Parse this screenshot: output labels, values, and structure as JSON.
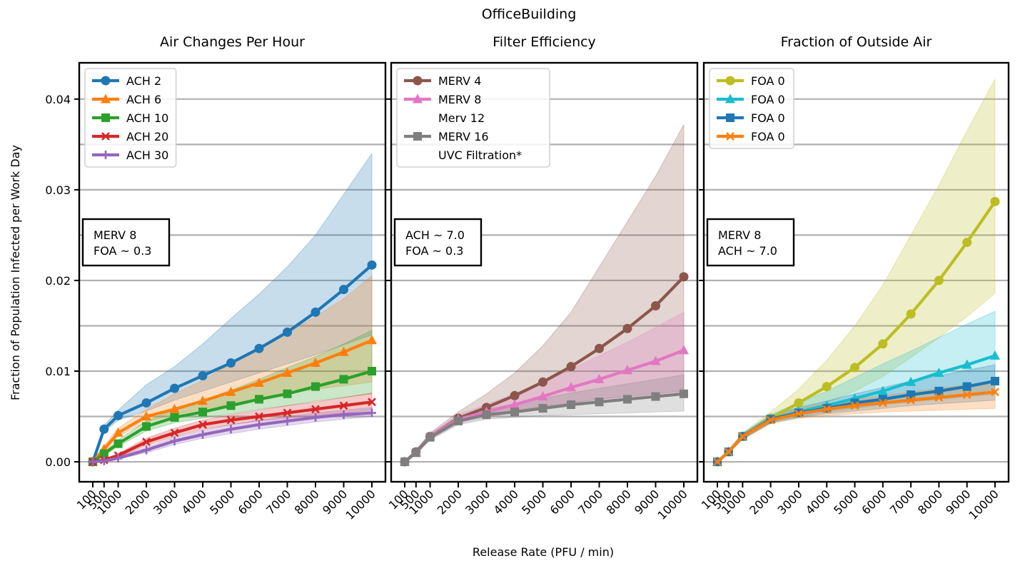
{
  "figure": {
    "title": "OfficeBuilding",
    "xlabel": "Release Rate (PFU / min)",
    "ylabel": "Fraction of Population Infected per Work Day"
  },
  "chart_data": [
    {
      "type": "line",
      "title": "Air Changes Per Hour",
      "xlabel": "Release Rate (PFU / min)",
      "ylabel": "Fraction of Population Infected per Work Day",
      "x": [
        100,
        500,
        1000,
        2000,
        3000,
        4000,
        5000,
        6000,
        7000,
        8000,
        9000,
        10000
      ],
      "xticks": [
        "100",
        "500",
        "1000",
        "2000",
        "3000",
        "4000",
        "5000",
        "6000",
        "7000",
        "8000",
        "9000",
        "10000"
      ],
      "yticks": [
        "0.00",
        "0.01",
        "0.02",
        "0.03",
        "0.04"
      ],
      "ylim": [
        -0.0022,
        0.044
      ],
      "grid": "horizontal",
      "legend": "top-left",
      "annotation": [
        "MERV 8",
        "FOA ~ 0.3"
      ],
      "series": [
        {
          "name": "ACH 2",
          "color": "#1f77b4",
          "marker": "circle",
          "values": [
            0.0,
            0.0036,
            0.0051,
            0.0065,
            0.0081,
            0.0095,
            0.0109,
            0.0125,
            0.0143,
            0.0165,
            0.019,
            0.0217
          ],
          "upper": [
            0.0003,
            0.004,
            0.0057,
            0.0085,
            0.0105,
            0.013,
            0.0158,
            0.0185,
            0.0215,
            0.025,
            0.0295,
            0.034
          ],
          "lower": [
            0.0,
            0.0033,
            0.0046,
            0.0056,
            0.0068,
            0.0078,
            0.0088,
            0.0098,
            0.0108,
            0.0118,
            0.0129,
            0.014
          ]
        },
        {
          "name": "ACH 6",
          "color": "#ff7f0e",
          "marker": "triangle",
          "values": [
            0.0,
            0.0014,
            0.0032,
            0.005,
            0.0058,
            0.0067,
            0.0077,
            0.0087,
            0.0098,
            0.0109,
            0.0121,
            0.0134
          ],
          "upper": [
            0.0002,
            0.0018,
            0.0037,
            0.0058,
            0.0075,
            0.009,
            0.0108,
            0.0125,
            0.0142,
            0.016,
            0.018,
            0.0205
          ],
          "lower": [
            0.0,
            0.0011,
            0.0028,
            0.0044,
            0.0052,
            0.0058,
            0.0064,
            0.007,
            0.0075,
            0.008,
            0.0084,
            0.0088
          ]
        },
        {
          "name": "ACH 10",
          "color": "#2ca02c",
          "marker": "square",
          "values": [
            0.0,
            0.0009,
            0.002,
            0.0039,
            0.0049,
            0.0055,
            0.0062,
            0.0069,
            0.0075,
            0.0083,
            0.0091,
            0.01
          ],
          "upper": [
            0.0001,
            0.0011,
            0.0024,
            0.0045,
            0.0058,
            0.0068,
            0.0079,
            0.0091,
            0.0104,
            0.0116,
            0.013,
            0.0145
          ],
          "lower": [
            0.0,
            0.0007,
            0.0017,
            0.0034,
            0.0043,
            0.0048,
            0.0053,
            0.0058,
            0.0062,
            0.0067,
            0.0071,
            0.0075
          ]
        },
        {
          "name": "ACH 20",
          "color": "#d62728",
          "marker": "x",
          "values": [
            0.0,
            0.0002,
            0.0007,
            0.0022,
            0.0032,
            0.0041,
            0.0046,
            0.005,
            0.0054,
            0.0058,
            0.0062,
            0.0066
          ],
          "upper": [
            0.0,
            0.0003,
            0.0009,
            0.0026,
            0.0037,
            0.0046,
            0.0052,
            0.0057,
            0.0062,
            0.0066,
            0.0071,
            0.0076
          ],
          "lower": [
            0.0,
            0.0001,
            0.0005,
            0.0018,
            0.0028,
            0.0036,
            0.0041,
            0.0045,
            0.0048,
            0.0051,
            0.0054,
            0.0057
          ]
        },
        {
          "name": "ACH 30",
          "color": "#9467bd",
          "marker": "plus",
          "values": [
            0.0,
            0.0001,
            0.0004,
            0.0013,
            0.0023,
            0.003,
            0.0036,
            0.0041,
            0.0045,
            0.0049,
            0.0052,
            0.0054
          ],
          "upper": [
            0.0,
            0.0002,
            0.0006,
            0.0016,
            0.0027,
            0.0035,
            0.0041,
            0.0046,
            0.005,
            0.0054,
            0.0057,
            0.006
          ],
          "lower": [
            0.0,
            0.0,
            0.0003,
            0.001,
            0.0019,
            0.0026,
            0.0031,
            0.0036,
            0.004,
            0.0044,
            0.0047,
            0.005
          ]
        }
      ]
    },
    {
      "type": "line",
      "title": "Filter Efficiency",
      "xlabel": "Release Rate (PFU / min)",
      "x": [
        100,
        500,
        1000,
        2000,
        3000,
        4000,
        5000,
        6000,
        7000,
        8000,
        9000,
        10000
      ],
      "xticks": [
        "100",
        "500",
        "1000",
        "2000",
        "3000",
        "4000",
        "5000",
        "6000",
        "7000",
        "8000",
        "9000",
        "10000"
      ],
      "ylim": [
        -0.0022,
        0.044
      ],
      "grid": "horizontal",
      "legend": "top-left",
      "annotation": [
        "ACH ~ 7.0",
        "FOA ~ 0.3"
      ],
      "series": [
        {
          "name": "MERV 4",
          "color": "#8c564b",
          "marker": "circle",
          "values": [
            0.0,
            0.0011,
            0.0028,
            0.0048,
            0.006,
            0.0073,
            0.0088,
            0.0105,
            0.0125,
            0.0147,
            0.0172,
            0.0204
          ],
          "upper": [
            0.0001,
            0.0013,
            0.0032,
            0.0055,
            0.0075,
            0.0098,
            0.0128,
            0.0165,
            0.0215,
            0.0265,
            0.0315,
            0.0372
          ],
          "lower": [
            0.0,
            0.001,
            0.0025,
            0.0043,
            0.0052,
            0.0057,
            0.0061,
            0.0065,
            0.0069,
            0.0072,
            0.0075,
            0.0078
          ]
        },
        {
          "name": "MERV 8",
          "color": "#e377c2",
          "marker": "triangle",
          "values": [
            0.0,
            0.001,
            0.0028,
            0.0047,
            0.0055,
            0.0063,
            0.0072,
            0.0082,
            0.0091,
            0.0101,
            0.0111,
            0.0123
          ],
          "upper": [
            0.0001,
            0.0012,
            0.0031,
            0.0052,
            0.0063,
            0.0075,
            0.0088,
            0.0102,
            0.0117,
            0.0132,
            0.0148,
            0.0165
          ],
          "lower": [
            0.0,
            0.0009,
            0.0025,
            0.0043,
            0.0049,
            0.0054,
            0.0059,
            0.0063,
            0.0067,
            0.007,
            0.0073,
            0.0076
          ]
        },
        {
          "name": "Merv 12\nMERV 16\nUVC Filtration*",
          "color": "#7f7f7f",
          "marker": "square",
          "values": [
            0.0,
            0.001,
            0.0027,
            0.0045,
            0.0052,
            0.0055,
            0.0059,
            0.0063,
            0.0066,
            0.0069,
            0.0072,
            0.0075
          ],
          "upper": [
            0.0001,
            0.0012,
            0.003,
            0.005,
            0.0058,
            0.0064,
            0.007,
            0.0076,
            0.0081,
            0.0086,
            0.0091,
            0.0096
          ],
          "lower": [
            0.0,
            0.0009,
            0.0024,
            0.0041,
            0.0047,
            0.0049,
            0.0051,
            0.0052,
            0.0053,
            0.0054,
            0.0055,
            0.0056
          ]
        }
      ]
    },
    {
      "type": "line",
      "title": "Fraction of Outside Air",
      "xlabel": "Release Rate (PFU / min)",
      "x": [
        100,
        500,
        1000,
        2000,
        3000,
        4000,
        5000,
        6000,
        7000,
        8000,
        9000,
        10000
      ],
      "xticks": [
        "100",
        "500",
        "1000",
        "2000",
        "3000",
        "4000",
        "5000",
        "6000",
        "7000",
        "8000",
        "9000",
        "10000"
      ],
      "ylim": [
        -0.0022,
        0.044
      ],
      "grid": "horizontal",
      "legend": "top-left",
      "annotation": [
        "MERV 8",
        "ACH ~ 7.0"
      ],
      "series": [
        {
          "name": "FOA 0",
          "color": "#bcbd22",
          "marker": "circle",
          "values": [
            0.0,
            0.0011,
            0.0028,
            0.0048,
            0.0065,
            0.0083,
            0.0104,
            0.013,
            0.0163,
            0.02,
            0.0242,
            0.0287
          ],
          "upper": [
            0.0001,
            0.0013,
            0.0032,
            0.0055,
            0.008,
            0.0112,
            0.015,
            0.0195,
            0.025,
            0.0305,
            0.0365,
            0.0422
          ],
          "lower": [
            0.0,
            0.001,
            0.0025,
            0.0043,
            0.0055,
            0.0065,
            0.0078,
            0.0094,
            0.0115,
            0.0137,
            0.016,
            0.0186
          ]
        },
        {
          "name": "FOA 0",
          "color": "#17becf",
          "marker": "triangle",
          "values": [
            0.0,
            0.0011,
            0.0028,
            0.0047,
            0.0055,
            0.0062,
            0.007,
            0.0078,
            0.0088,
            0.0098,
            0.0107,
            0.0117
          ],
          "upper": [
            0.0001,
            0.0013,
            0.0031,
            0.0052,
            0.0065,
            0.0078,
            0.0093,
            0.0108,
            0.0122,
            0.0137,
            0.0152,
            0.0166
          ],
          "lower": [
            0.0,
            0.001,
            0.0025,
            0.0043,
            0.005,
            0.0055,
            0.0059,
            0.0063,
            0.0066,
            0.0069,
            0.0072,
            0.0075
          ]
        },
        {
          "name": "FOA 0",
          "color": "#1f77b4",
          "marker": "square",
          "values": [
            0.0,
            0.0011,
            0.0028,
            0.0047,
            0.0054,
            0.0059,
            0.0065,
            0.0069,
            0.0074,
            0.0078,
            0.0083,
            0.0089
          ],
          "upper": [
            0.0001,
            0.0013,
            0.0031,
            0.0051,
            0.006,
            0.0067,
            0.0075,
            0.0082,
            0.0089,
            0.0095,
            0.0101,
            0.0107
          ],
          "lower": [
            0.0,
            0.001,
            0.0025,
            0.0043,
            0.0049,
            0.0053,
            0.0056,
            0.0059,
            0.0062,
            0.0064,
            0.0066,
            0.0068
          ]
        },
        {
          "name": "FOA 0",
          "color": "#ff7f0e",
          "marker": "x",
          "values": [
            0.0,
            0.0011,
            0.0028,
            0.0046,
            0.0053,
            0.0058,
            0.0062,
            0.0065,
            0.0068,
            0.0071,
            0.0074,
            0.0077
          ],
          "upper": [
            0.0001,
            0.0013,
            0.003,
            0.005,
            0.0058,
            0.0064,
            0.0069,
            0.0073,
            0.0077,
            0.0081,
            0.0085,
            0.0089
          ],
          "lower": [
            0.0,
            0.001,
            0.0025,
            0.0042,
            0.0048,
            0.0051,
            0.0053,
            0.0055,
            0.0056,
            0.0057,
            0.0058,
            0.0059
          ]
        }
      ]
    }
  ]
}
